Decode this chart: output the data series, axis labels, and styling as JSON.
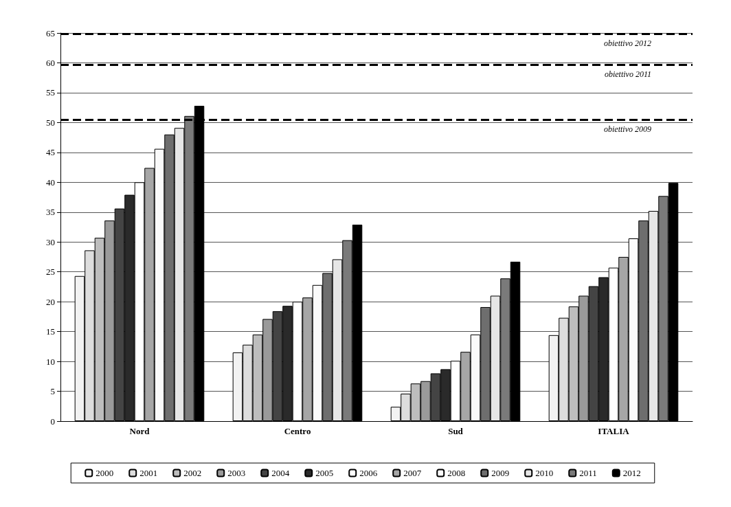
{
  "chart_data": {
    "type": "bar",
    "categories": [
      "Nord",
      "Centro",
      "Sud",
      "ITALIA"
    ],
    "series": [
      {
        "name": "2000",
        "color": "#f2f2f2",
        "values": [
          24.3,
          11.5,
          2.4,
          14.4
        ]
      },
      {
        "name": "2001",
        "color": "#dddddd",
        "values": [
          28.6,
          12.8,
          4.6,
          17.3
        ]
      },
      {
        "name": "2002",
        "color": "#bdbdbd",
        "values": [
          30.7,
          14.5,
          6.3,
          19.2
        ]
      },
      {
        "name": "2003",
        "color": "#9a9a9a",
        "values": [
          33.6,
          17.1,
          6.7,
          21.0
        ]
      },
      {
        "name": "2004",
        "color": "#444444",
        "values": [
          35.6,
          18.4,
          8.0,
          22.6
        ]
      },
      {
        "name": "2005",
        "color": "#2a2a2a",
        "values": [
          37.9,
          19.3,
          8.7,
          24.1
        ]
      },
      {
        "name": "2006",
        "color": "#ffffff",
        "values": [
          40.0,
          20.0,
          10.1,
          25.7
        ]
      },
      {
        "name": "2007",
        "color": "#a6a6a6",
        "values": [
          42.4,
          20.7,
          11.6,
          27.5
        ]
      },
      {
        "name": "2008",
        "color": "#fafafa",
        "values": [
          45.6,
          22.8,
          14.5,
          30.6
        ]
      },
      {
        "name": "2009",
        "color": "#6e6e6e",
        "values": [
          48.0,
          24.8,
          19.1,
          33.6
        ]
      },
      {
        "name": "2010",
        "color": "#e6e6e6",
        "values": [
          49.1,
          27.1,
          21.0,
          35.2
        ]
      },
      {
        "name": "2011",
        "color": "#7a7a7a",
        "values": [
          51.1,
          30.3,
          23.9,
          37.7
        ]
      },
      {
        "name": "2012",
        "color": "#000000",
        "values": [
          52.8,
          32.9,
          26.7,
          39.9
        ]
      }
    ],
    "ylim": [
      0,
      65
    ],
    "yticks": [
      0,
      5,
      10,
      15,
      20,
      25,
      30,
      35,
      40,
      45,
      50,
      55,
      60,
      65
    ],
    "grid": "y",
    "legend": "bottom",
    "ref_lines": [
      {
        "axis": "y",
        "value": 64.9,
        "label": "obiettivo 2012",
        "line_style": "dashed"
      },
      {
        "axis": "y",
        "value": 59.7,
        "label": "obiettivo 2011",
        "line_style": "dashed"
      },
      {
        "axis": "y",
        "value": 50.5,
        "label": "obiettivo 2009",
        "line_style": "dashed"
      }
    ]
  }
}
